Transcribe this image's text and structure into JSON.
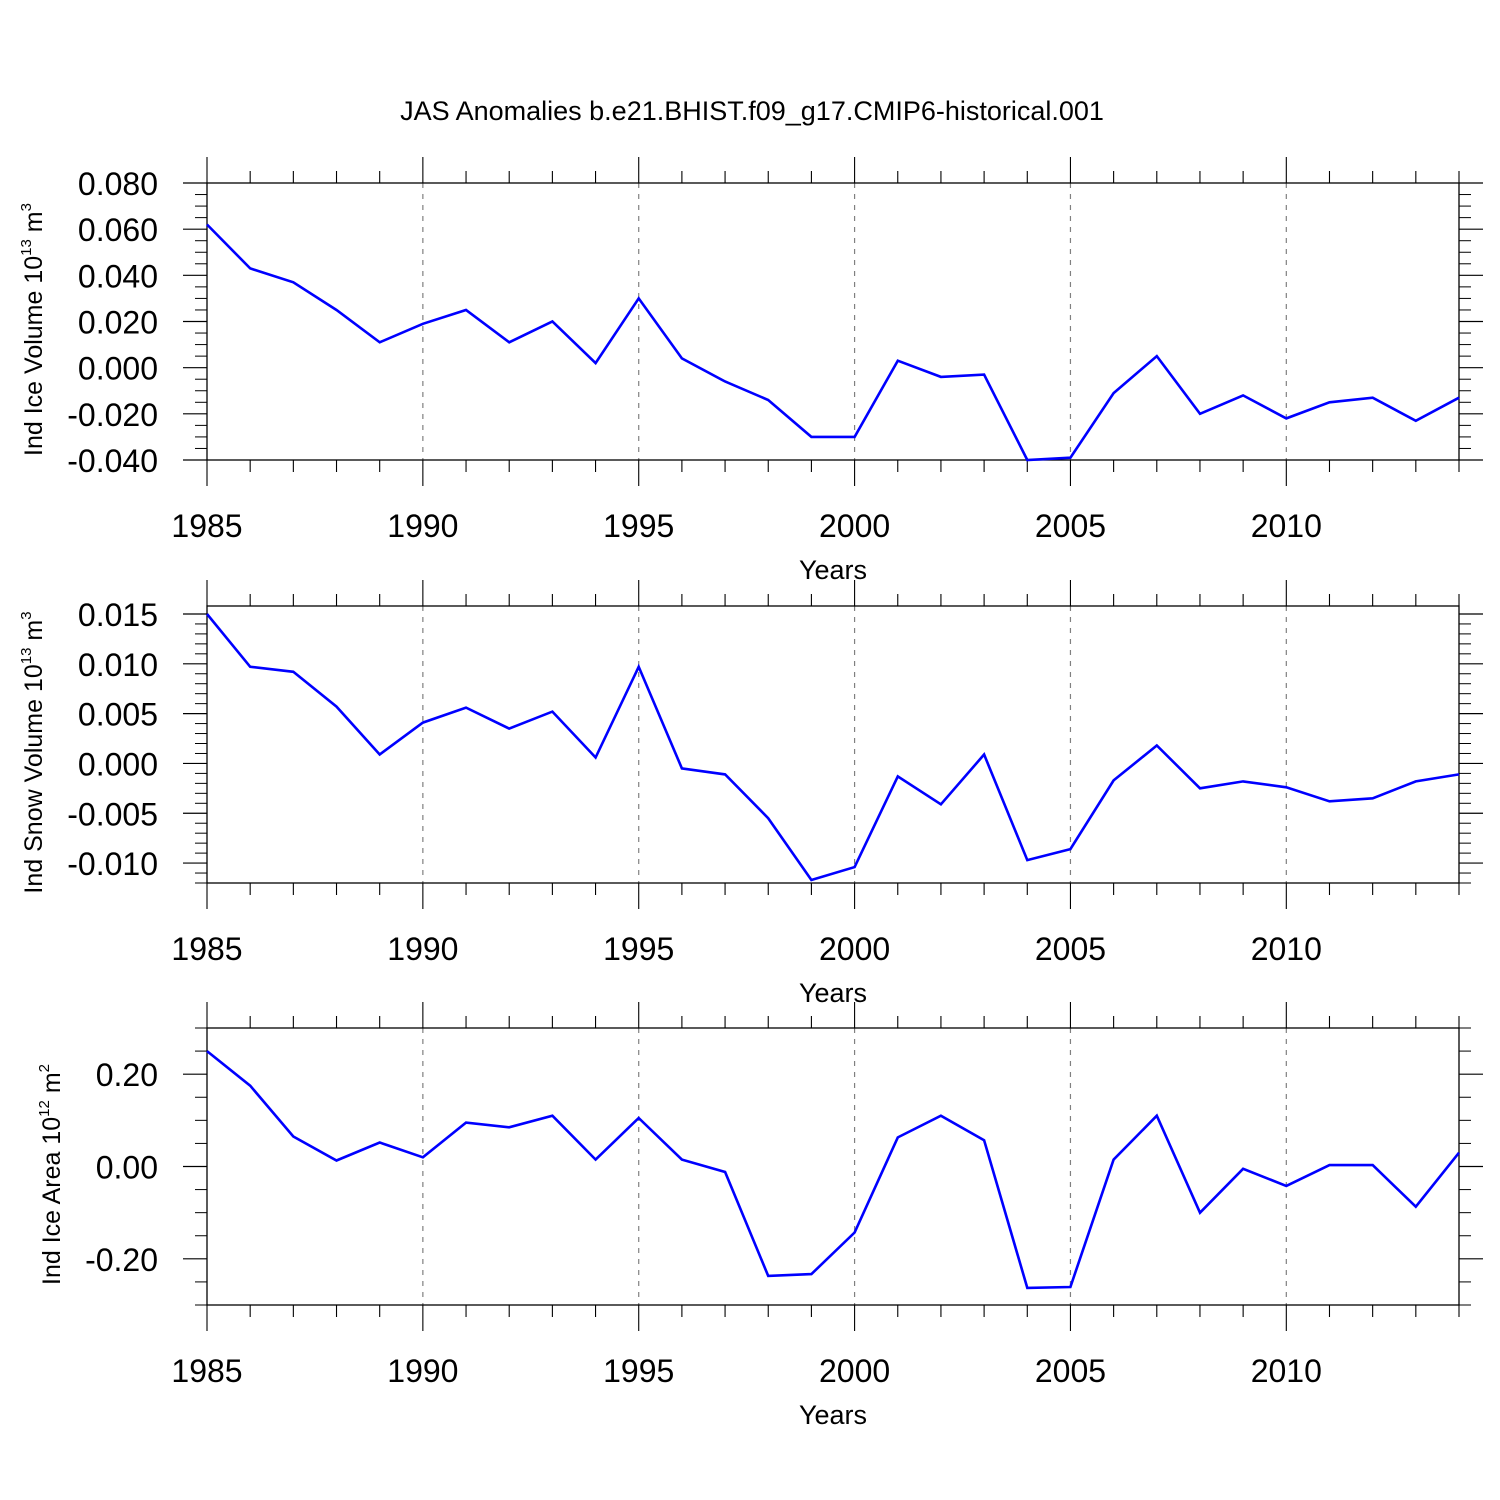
{
  "figure": {
    "title": "JAS Anomalies b.e21.BHIST.f09_g17.CMIP6-historical.001",
    "line_color": "#0000ff",
    "grid_color": "#808080",
    "axis_color": "#000000"
  },
  "chart_data": [
    {
      "type": "line",
      "ylabel_main": "Ind Ice Volume 10",
      "ylabel_exp": "13",
      "ylabel_unit": " m",
      "ylabel_unit_exp": "3",
      "xlabel": "Years",
      "xlim": [
        1985,
        2014
      ],
      "ylim": [
        -0.04,
        0.08
      ],
      "yticks": [
        -0.04,
        -0.02,
        0.0,
        0.02,
        0.04,
        0.06,
        0.08
      ],
      "yticklabels": [
        "-0.040",
        "-0.020",
        "0.000",
        "0.020",
        "0.040",
        "0.060",
        "0.080"
      ],
      "yminor": 0.005,
      "xticks": [
        1985,
        1990,
        1995,
        2000,
        2005,
        2010
      ],
      "xticklabels": [
        "1985",
        "1990",
        "1995",
        "2000",
        "2005",
        "2010"
      ],
      "vgrid": [
        1990,
        1995,
        2000,
        2005,
        2010
      ],
      "x": [
        1985,
        1986,
        1987,
        1988,
        1989,
        1990,
        1991,
        1992,
        1993,
        1994,
        1995,
        1996,
        1997,
        1998,
        1999,
        2000,
        2001,
        2002,
        2003,
        2004,
        2005,
        2006,
        2007,
        2008,
        2009,
        2010,
        2011,
        2012,
        2013,
        2014
      ],
      "series": [
        {
          "values": [
            0.062,
            0.043,
            0.037,
            0.025,
            0.011,
            0.019,
            0.025,
            0.011,
            0.02,
            0.002,
            0.03,
            0.004,
            -0.006,
            -0.014,
            -0.03,
            -0.03,
            0.003,
            -0.004,
            -0.003,
            -0.04,
            -0.039,
            -0.011,
            0.005,
            -0.02,
            -0.012,
            -0.022,
            -0.015,
            -0.013,
            -0.023,
            -0.013
          ]
        }
      ]
    },
    {
      "type": "line",
      "ylabel_main": "Ind Snow Volume 10",
      "ylabel_exp": "13",
      "ylabel_unit": " m",
      "ylabel_unit_exp": "3",
      "xlabel": "Years",
      "xlim": [
        1985,
        2014
      ],
      "ylim": [
        -0.012,
        0.0158
      ],
      "yticks": [
        -0.01,
        -0.005,
        0.0,
        0.005,
        0.01,
        0.015
      ],
      "yticklabels": [
        "-0.010",
        "-0.005",
        "0.000",
        "0.005",
        "0.010",
        "0.015"
      ],
      "yminor": 0.001,
      "xticks": [
        1985,
        1990,
        1995,
        2000,
        2005,
        2010
      ],
      "xticklabels": [
        "1985",
        "1990",
        "1995",
        "2000",
        "2005",
        "2010"
      ],
      "vgrid": [
        1990,
        1995,
        2000,
        2005,
        2010
      ],
      "x": [
        1985,
        1986,
        1987,
        1988,
        1989,
        1990,
        1991,
        1992,
        1993,
        1994,
        1995,
        1996,
        1997,
        1998,
        1999,
        2000,
        2001,
        2002,
        2003,
        2004,
        2005,
        2006,
        2007,
        2008,
        2009,
        2010,
        2011,
        2012,
        2013,
        2014
      ],
      "series": [
        {
          "values": [
            0.015,
            0.0097,
            0.0092,
            0.0057,
            0.0009,
            0.0041,
            0.0056,
            0.0035,
            0.0052,
            0.0006,
            0.0097,
            -0.0005,
            -0.0011,
            -0.0055,
            -0.0117,
            -0.0104,
            -0.0013,
            -0.0041,
            0.0009,
            -0.0097,
            -0.0086,
            -0.0017,
            0.0018,
            -0.0025,
            -0.0018,
            -0.0024,
            -0.0038,
            -0.0035,
            -0.0018,
            -0.0011
          ]
        }
      ]
    },
    {
      "type": "line",
      "ylabel_main": "Ind Ice Area 10",
      "ylabel_exp": "12",
      "ylabel_unit": " m",
      "ylabel_unit_exp": "2",
      "xlabel": "Years",
      "xlim": [
        1985,
        2014
      ],
      "ylim": [
        -0.3,
        0.3
      ],
      "yticks": [
        -0.2,
        0.0,
        0.2
      ],
      "yticklabels": [
        "-0.20",
        "0.00",
        "0.20"
      ],
      "yminor": 0.05,
      "xticks": [
        1985,
        1990,
        1995,
        2000,
        2005,
        2010
      ],
      "xticklabels": [
        "1985",
        "1990",
        "1995",
        "2000",
        "2005",
        "2010"
      ],
      "vgrid": [
        1990,
        1995,
        2000,
        2005,
        2010
      ],
      "x": [
        1985,
        1986,
        1987,
        1988,
        1989,
        1990,
        1991,
        1992,
        1993,
        1994,
        1995,
        1996,
        1997,
        1998,
        1999,
        2000,
        2001,
        2002,
        2003,
        2004,
        2005,
        2006,
        2007,
        2008,
        2009,
        2010,
        2011,
        2012,
        2013,
        2014
      ],
      "series": [
        {
          "values": [
            0.25,
            0.175,
            0.065,
            0.013,
            0.052,
            0.02,
            0.095,
            0.085,
            0.11,
            0.015,
            0.105,
            0.015,
            -0.012,
            -0.237,
            -0.233,
            -0.143,
            0.063,
            0.11,
            0.057,
            -0.263,
            -0.261,
            0.015,
            0.11,
            -0.1,
            -0.005,
            -0.042,
            0.003,
            0.003,
            -0.087,
            0.03
          ]
        }
      ]
    }
  ]
}
